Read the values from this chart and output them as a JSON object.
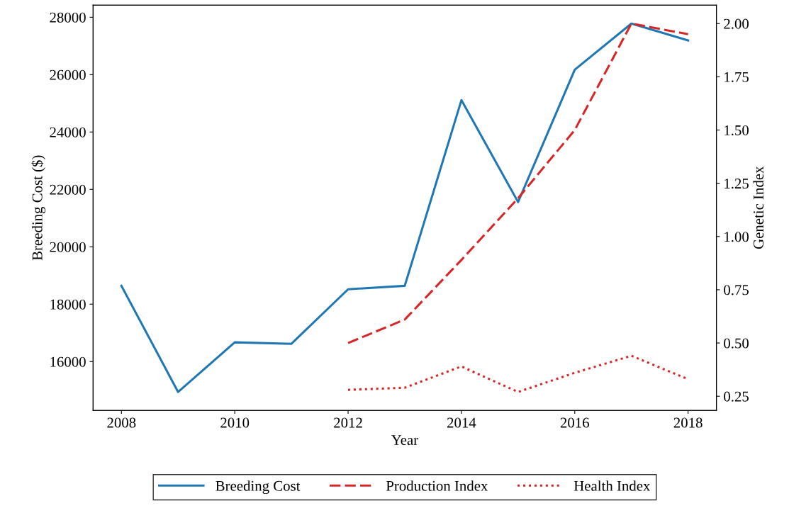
{
  "chart_data": {
    "type": "line",
    "xlabel": "Year",
    "ylabel": "Breeding Cost ($)",
    "y2label": "Genetic Index",
    "x": [
      2008,
      2009,
      2010,
      2011,
      2012,
      2013,
      2014,
      2015,
      2016,
      2017,
      2018
    ],
    "series": [
      {
        "name": "Breeding Cost",
        "color": "#1f77b4",
        "line_style": "solid",
        "values": [
          18640,
          14940,
          16670,
          16620,
          18520,
          18640,
          25110,
          21560,
          26170,
          27780,
          27190
        ]
      },
      {
        "name": "Production Index",
        "color": "#d62728",
        "line_style": "dashed",
        "axis": "y2",
        "x": [
          2012,
          2013,
          2014,
          2015,
          2016,
          2017,
          2018
        ],
        "values": [
          0.5,
          0.61,
          0.89,
          1.18,
          1.5,
          2.0,
          1.95
        ]
      },
      {
        "name": "Health Index",
        "color": "#d62728",
        "line_style": "dotted",
        "axis": "y2",
        "x": [
          2012,
          2013,
          2014,
          2015,
          2016,
          2017,
          2018
        ],
        "values": [
          0.28,
          0.29,
          0.39,
          0.27,
          0.36,
          0.44,
          0.33
        ]
      }
    ],
    "xlim": [
      2007.5,
      2018.5
    ],
    "xticks": [
      2008,
      2010,
      2012,
      2014,
      2016,
      2018
    ],
    "ylim": [
      14298,
      28422
    ],
    "yticks": [
      16000,
      18000,
      20000,
      22000,
      24000,
      26000,
      28000
    ],
    "y2lim": [
      0.1835,
      2.0865
    ],
    "y2ticks": [
      {
        "value": 0.25,
        "label": "0.25"
      },
      {
        "value": 0.5,
        "label": "0.50"
      },
      {
        "value": 0.75,
        "label": "0.75"
      },
      {
        "value": 1.0,
        "label": "1.00"
      },
      {
        "value": 1.25,
        "label": "1.25"
      },
      {
        "value": 1.5,
        "label": "1.50"
      },
      {
        "value": 1.75,
        "label": "1.75"
      },
      {
        "value": 2.0,
        "label": "2.00"
      }
    ],
    "grid": false,
    "legend": "bottom",
    "marker": "none"
  }
}
